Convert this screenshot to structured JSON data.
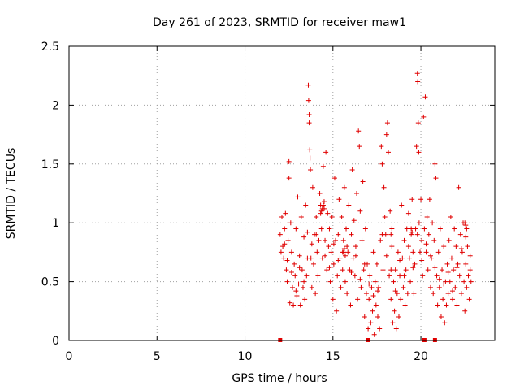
{
  "chart_data": {
    "type": "scatter",
    "title": "Day 261 of 2023, SRMTID for receiver maw1",
    "xlabel": "GPS time / hours",
    "ylabel": "SRMTID / TECUs",
    "xlim": [
      0,
      24.2
    ],
    "ylim": [
      0,
      2.5
    ],
    "xticks": [
      0,
      5,
      10,
      15,
      20
    ],
    "yticks": [
      0,
      0.5,
      1,
      1.5,
      2,
      2.5
    ],
    "xtick_labels": [
      "0",
      "5",
      "10",
      "15",
      "20"
    ],
    "ytick_labels": [
      "0",
      "0.5",
      "1",
      "1.5",
      "2",
      "2.5"
    ],
    "grid": true,
    "legend": "none",
    "marker": "plus",
    "color": "#e00000",
    "outages_x": [
      12.0,
      17.0,
      20.2,
      20.8
    ],
    "series": [
      {
        "points": [
          [
            12.0,
            0.9
          ],
          [
            12.1,
            1.05
          ],
          [
            12.15,
            0.8
          ],
          [
            12.2,
            0.7
          ],
          [
            12.25,
            0.95
          ],
          [
            12.3,
            1.08
          ],
          [
            12.35,
            0.6
          ],
          [
            12.4,
            0.5
          ],
          [
            12.45,
            0.85
          ],
          [
            12.5,
            1.52
          ],
          [
            12.5,
            1.38
          ],
          [
            12.55,
            0.32
          ],
          [
            12.6,
            1.0
          ],
          [
            12.65,
            0.75
          ],
          [
            12.7,
            0.45
          ],
          [
            12.75,
            0.3
          ],
          [
            12.8,
            0.65
          ],
          [
            12.85,
            0.55
          ],
          [
            12.9,
            0.95
          ],
          [
            12.95,
            0.38
          ],
          [
            13.0,
            1.22
          ],
          [
            13.05,
            0.48
          ],
          [
            13.1,
            0.72
          ],
          [
            13.15,
            0.3
          ],
          [
            13.2,
            1.05
          ],
          [
            13.25,
            0.6
          ],
          [
            13.3,
            0.45
          ],
          [
            13.35,
            0.88
          ],
          [
            13.4,
            0.35
          ],
          [
            13.45,
            1.15
          ],
          [
            13.5,
            0.55
          ],
          [
            13.55,
            0.92
          ],
          [
            13.6,
            2.17
          ],
          [
            13.62,
            2.04
          ],
          [
            13.65,
            1.92
          ],
          [
            13.65,
            1.85
          ],
          [
            13.68,
            1.62
          ],
          [
            13.7,
            1.55
          ],
          [
            13.72,
            1.45
          ],
          [
            13.75,
            0.7
          ],
          [
            13.8,
            0.45
          ],
          [
            13.85,
            1.3
          ],
          [
            13.9,
            0.65
          ],
          [
            13.95,
            0.9
          ],
          [
            14.0,
            0.4
          ],
          [
            14.05,
            1.05
          ],
          [
            14.1,
            0.75
          ],
          [
            14.15,
            0.55
          ],
          [
            14.2,
            0.85
          ],
          [
            14.25,
            1.25
          ],
          [
            14.3,
            1.15
          ],
          [
            14.35,
            0.95
          ],
          [
            14.4,
            0.7
          ],
          [
            14.45,
            1.48
          ],
          [
            14.5,
            1.12
          ],
          [
            14.55,
            0.85
          ],
          [
            14.6,
            1.6
          ],
          [
            14.65,
            0.6
          ],
          [
            14.7,
            1.08
          ],
          [
            14.75,
            0.8
          ],
          [
            14.8,
            0.95
          ],
          [
            14.85,
            0.5
          ],
          [
            14.9,
            0.75
          ],
          [
            14.95,
            1.05
          ],
          [
            15.0,
            0.35
          ],
          [
            15.05,
            0.65
          ],
          [
            15.1,
            1.38
          ],
          [
            15.15,
            0.85
          ],
          [
            15.2,
            0.25
          ],
          [
            15.25,
            0.55
          ],
          [
            15.3,
            0.9
          ],
          [
            15.35,
            1.2
          ],
          [
            15.4,
            0.7
          ],
          [
            15.45,
            0.45
          ],
          [
            15.5,
            1.05
          ],
          [
            15.55,
            0.6
          ],
          [
            15.6,
            0.85
          ],
          [
            15.65,
            1.3
          ],
          [
            15.7,
            0.5
          ],
          [
            15.75,
            0.95
          ],
          [
            15.8,
            0.4
          ],
          [
            15.85,
            0.75
          ],
          [
            15.9,
            1.15
          ],
          [
            15.95,
            0.6
          ],
          [
            16.0,
            0.3
          ],
          [
            16.05,
            0.9
          ],
          [
            16.1,
            1.45
          ],
          [
            16.15,
            0.7
          ],
          [
            16.2,
            1.02
          ],
          [
            16.25,
            0.55
          ],
          [
            16.3,
            0.8
          ],
          [
            16.35,
            1.25
          ],
          [
            16.4,
            0.35
          ],
          [
            16.45,
            1.78
          ],
          [
            16.5,
            1.65
          ],
          [
            16.55,
            1.1
          ],
          [
            16.6,
            0.45
          ],
          [
            16.65,
            0.85
          ],
          [
            16.7,
            1.35
          ],
          [
            16.75,
            0.6
          ],
          [
            16.8,
            0.2
          ],
          [
            16.85,
            0.95
          ],
          [
            16.9,
            0.4
          ],
          [
            16.95,
            0.65
          ],
          [
            17.0,
            0.1
          ],
          [
            17.05,
            0.35
          ],
          [
            17.1,
            0.55
          ],
          [
            17.15,
            0.15
          ],
          [
            17.2,
            0.45
          ],
          [
            17.25,
            0.25
          ],
          [
            17.3,
            0.75
          ],
          [
            17.35,
            0.05
          ],
          [
            17.4,
            0.5
          ],
          [
            17.45,
            0.3
          ],
          [
            17.5,
            0.65
          ],
          [
            17.55,
            0.2
          ],
          [
            17.6,
            0.45
          ],
          [
            17.65,
            0.1
          ],
          [
            17.7,
            0.85
          ],
          [
            17.75,
            1.65
          ],
          [
            17.8,
            1.5
          ],
          [
            17.85,
            0.6
          ],
          [
            17.9,
            1.3
          ],
          [
            17.95,
            1.05
          ],
          [
            18.0,
            0.9
          ],
          [
            18.05,
            1.75
          ],
          [
            18.1,
            1.85
          ],
          [
            18.15,
            1.6
          ],
          [
            18.2,
            0.55
          ],
          [
            18.25,
            1.1
          ],
          [
            18.3,
            0.35
          ],
          [
            18.35,
            0.8
          ],
          [
            18.4,
            0.15
          ],
          [
            18.45,
            0.5
          ],
          [
            18.5,
            0.25
          ],
          [
            18.55,
            0.6
          ],
          [
            18.6,
            0.1
          ],
          [
            18.65,
            0.4
          ],
          [
            18.7,
            0.75
          ],
          [
            18.75,
            0.2
          ],
          [
            18.8,
            0.55
          ],
          [
            18.85,
            0.35
          ],
          [
            18.9,
            1.15
          ],
          [
            18.95,
            0.7
          ],
          [
            19.0,
            0.45
          ],
          [
            19.05,
            0.85
          ],
          [
            19.1,
            0.3
          ],
          [
            19.15,
            0.6
          ],
          [
            19.2,
            0.95
          ],
          [
            19.25,
            0.4
          ],
          [
            19.3,
            1.08
          ],
          [
            19.35,
            0.7
          ],
          [
            19.4,
            0.5
          ],
          [
            19.45,
            0.9
          ],
          [
            19.5,
            1.2
          ],
          [
            19.55,
            0.75
          ],
          [
            19.6,
            0.4
          ],
          [
            19.65,
            0.65
          ],
          [
            19.7,
            0.95
          ],
          [
            19.75,
            1.65
          ],
          [
            19.8,
            2.27
          ],
          [
            19.82,
            2.2
          ],
          [
            19.85,
            1.85
          ],
          [
            19.88,
            1.6
          ],
          [
            19.9,
            1.0
          ],
          [
            19.95,
            0.75
          ],
          [
            20.0,
            1.2
          ],
          [
            20.05,
            0.85
          ],
          [
            20.1,
            0.55
          ],
          [
            20.15,
            1.9
          ],
          [
            20.2,
            0.95
          ],
          [
            20.25,
            2.07
          ],
          [
            20.3,
            0.75
          ],
          [
            20.35,
            1.05
          ],
          [
            20.4,
            0.6
          ],
          [
            20.45,
            0.9
          ],
          [
            20.5,
            1.2
          ],
          [
            20.55,
            0.45
          ],
          [
            20.6,
            0.7
          ],
          [
            20.65,
            1.0
          ],
          [
            20.7,
            0.4
          ],
          [
            20.75,
            0.85
          ],
          [
            20.8,
            1.5
          ],
          [
            20.85,
            1.38
          ],
          [
            20.9,
            0.55
          ],
          [
            20.95,
            0.3
          ],
          [
            21.0,
            0.75
          ],
          [
            21.05,
            0.45
          ],
          [
            21.1,
            0.95
          ],
          [
            21.15,
            0.2
          ],
          [
            21.2,
            0.6
          ],
          [
            21.25,
            0.35
          ],
          [
            21.3,
            0.8
          ],
          [
            21.35,
            0.15
          ],
          [
            21.4,
            0.5
          ],
          [
            21.45,
            0.3
          ],
          [
            21.5,
            0.65
          ],
          [
            21.55,
            0.4
          ],
          [
            21.6,
            0.85
          ],
          [
            21.65,
            0.5
          ],
          [
            21.7,
            1.05
          ],
          [
            21.75,
            0.7
          ],
          [
            21.8,
            0.35
          ],
          [
            21.85,
            0.6
          ],
          [
            21.9,
            0.95
          ],
          [
            21.95,
            0.45
          ],
          [
            22.0,
            0.8
          ],
          [
            22.05,
            0.3
          ],
          [
            22.1,
            0.65
          ],
          [
            22.15,
            1.3
          ],
          [
            22.2,
            0.55
          ],
          [
            22.25,
            0.9
          ],
          [
            22.3,
            0.4
          ],
          [
            22.35,
            0.75
          ],
          [
            22.4,
            1.0
          ],
          [
            22.45,
            0.5
          ],
          [
            22.5,
            0.25
          ],
          [
            22.55,
            0.65
          ],
          [
            22.6,
            0.45
          ],
          [
            22.65,
            0.8
          ],
          [
            22.7,
            0.55
          ],
          [
            22.75,
            0.35
          ],
          [
            22.8,
            0.6
          ],
          [
            22.85,
            0.5
          ],
          [
            12.05,
            0.75
          ],
          [
            12.25,
            0.82
          ],
          [
            12.4,
            0.68
          ],
          [
            12.65,
            0.58
          ],
          [
            12.9,
            0.42
          ],
          [
            13.1,
            0.62
          ],
          [
            13.35,
            0.5
          ],
          [
            13.55,
            0.7
          ],
          [
            13.8,
            0.82
          ],
          [
            14.05,
            0.9
          ],
          [
            14.3,
            1.08
          ],
          [
            14.55,
            0.72
          ],
          [
            14.8,
            0.62
          ],
          [
            15.05,
            0.82
          ],
          [
            15.3,
            0.68
          ],
          [
            15.55,
            0.75
          ],
          [
            15.8,
            0.8
          ],
          [
            16.05,
            0.58
          ],
          [
            16.3,
            0.72
          ],
          [
            16.55,
            0.52
          ],
          [
            16.8,
            0.65
          ],
          [
            17.05,
            0.48
          ],
          [
            17.3,
            0.38
          ],
          [
            17.55,
            0.42
          ],
          [
            17.8,
            0.9
          ],
          [
            18.05,
            0.72
          ],
          [
            18.3,
            0.6
          ],
          [
            18.55,
            0.42
          ],
          [
            18.8,
            0.68
          ],
          [
            19.05,
            0.55
          ],
          [
            19.3,
            0.8
          ],
          [
            19.55,
            0.62
          ],
          [
            19.8,
            0.9
          ],
          [
            20.05,
            0.68
          ],
          [
            20.3,
            0.82
          ],
          [
            20.55,
            0.72
          ],
          [
            20.8,
            0.62
          ],
          [
            21.05,
            0.52
          ],
          [
            21.3,
            0.48
          ],
          [
            21.55,
            0.58
          ],
          [
            21.8,
            0.42
          ],
          [
            22.05,
            0.62
          ],
          [
            22.3,
            0.78
          ],
          [
            22.55,
            0.88
          ],
          [
            22.8,
            0.72
          ],
          [
            14.4,
            1.12
          ],
          [
            14.45,
            1.15
          ],
          [
            14.5,
            1.18
          ],
          [
            14.35,
            1.1
          ],
          [
            15.6,
            0.75
          ],
          [
            15.65,
            0.78
          ],
          [
            15.7,
            0.72
          ],
          [
            18.3,
            0.9
          ],
          [
            18.35,
            0.95
          ],
          [
            19.45,
            0.95
          ],
          [
            19.5,
            0.92
          ],
          [
            22.5,
            1.0
          ],
          [
            22.55,
            0.98
          ],
          [
            22.6,
            0.95
          ]
        ]
      }
    ]
  }
}
